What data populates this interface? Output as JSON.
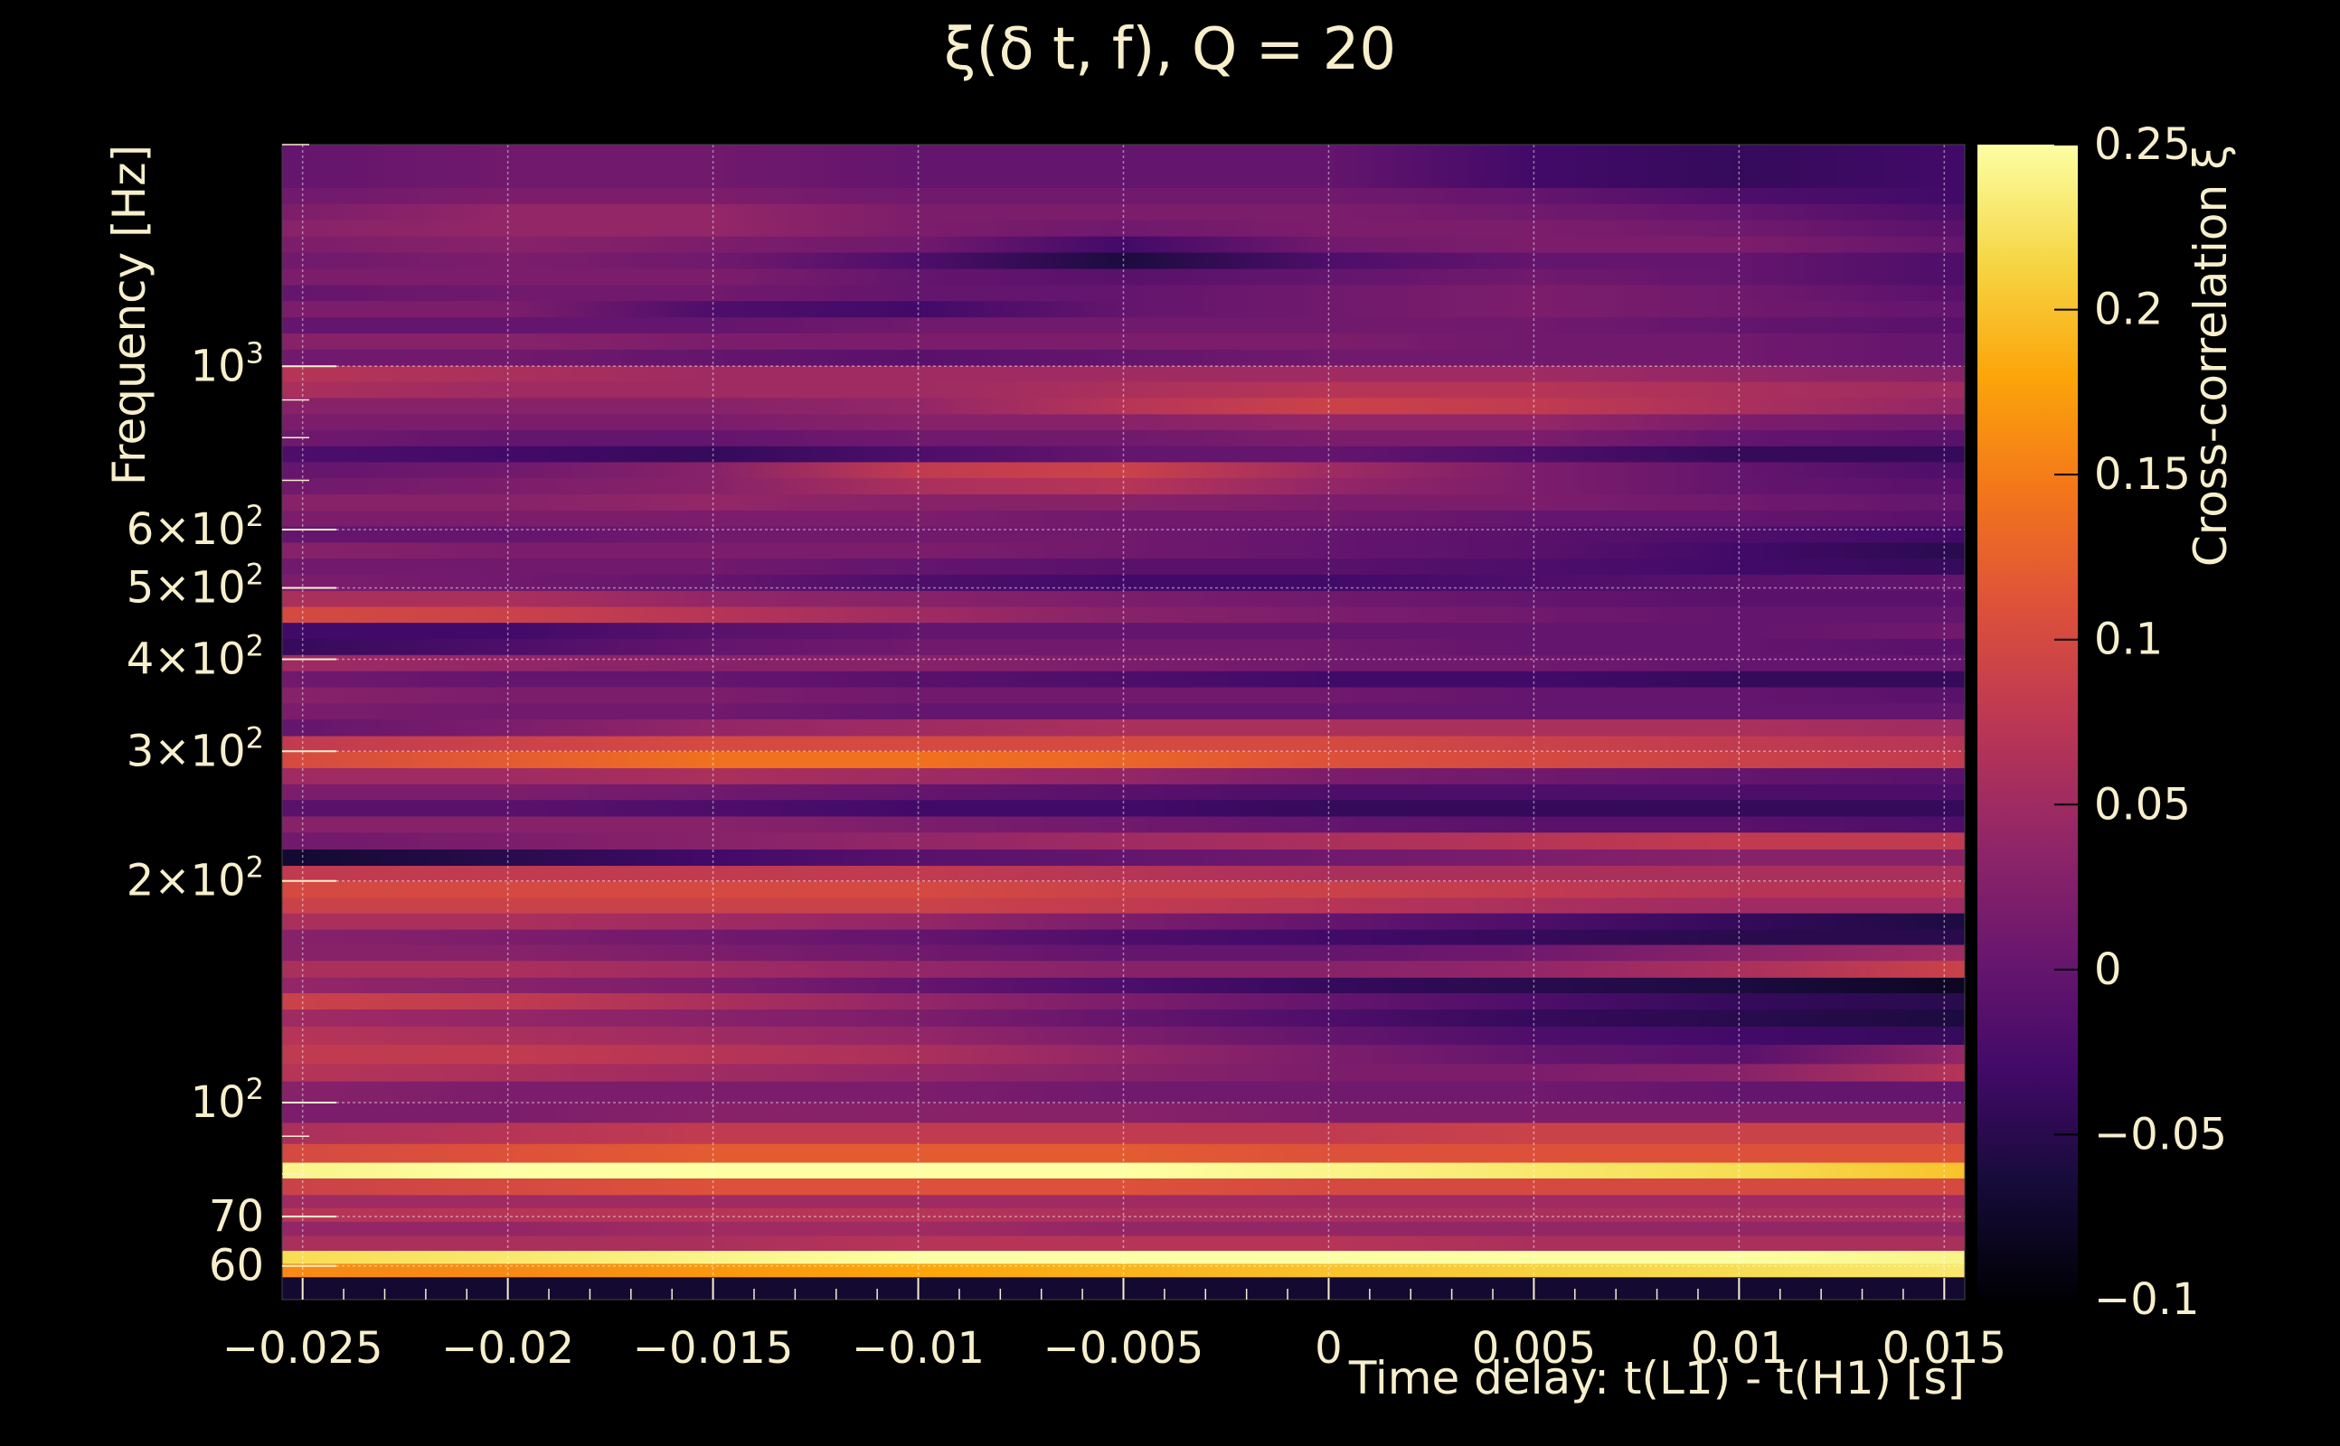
{
  "chart_data": {
    "type": "heatmap",
    "title": "ξ(δ t, f), Q = 20",
    "xlabel": "Time delay: t(L1) - t(H1) [s]",
    "ylabel": "Frequency [Hz]",
    "colorbar_label": "Cross-correlation ξ",
    "xlim": [
      -0.0255,
      0.0155
    ],
    "ylim": [
      54,
      2000
    ],
    "yscale": "log",
    "clim": [
      -0.1,
      0.25
    ],
    "colormap": "inferno",
    "grid": true,
    "x_ticks": [
      {
        "value": -0.025,
        "label": "−0.025"
      },
      {
        "value": -0.02,
        "label": "−0.02"
      },
      {
        "value": -0.015,
        "label": "−0.015"
      },
      {
        "value": -0.01,
        "label": "−0.01"
      },
      {
        "value": -0.005,
        "label": "−0.005"
      },
      {
        "value": 0,
        "label": "0"
      },
      {
        "value": 0.005,
        "label": "0.005"
      },
      {
        "value": 0.01,
        "label": "0.01"
      },
      {
        "value": 0.015,
        "label": "0.015"
      }
    ],
    "y_ticks": [
      {
        "value": 60,
        "label": "60"
      },
      {
        "value": 70,
        "label": "70"
      },
      {
        "value": 100,
        "base": "10",
        "exp": "2"
      },
      {
        "value": 200,
        "base": "2×10",
        "exp": "2"
      },
      {
        "value": 300,
        "base": "3×10",
        "exp": "2"
      },
      {
        "value": 400,
        "base": "4×10",
        "exp": "2"
      },
      {
        "value": 500,
        "base": "5×10",
        "exp": "2"
      },
      {
        "value": 600,
        "base": "6×10",
        "exp": "2"
      },
      {
        "value": 1000,
        "base": "10",
        "exp": "3"
      }
    ],
    "colorbar_ticks": [
      {
        "value": 0.25,
        "label": "0.25"
      },
      {
        "value": 0.2,
        "label": "0.2"
      },
      {
        "value": 0.15,
        "label": "0.15"
      },
      {
        "value": 0.1,
        "label": "0.1"
      },
      {
        "value": 0.05,
        "label": "0.05"
      },
      {
        "value": 0,
        "label": "0"
      },
      {
        "value": -0.05,
        "label": "−0.05"
      },
      {
        "value": -0.1,
        "label": "−0.1"
      }
    ],
    "x_samples": [
      -0.0255,
      -0.02,
      -0.015,
      -0.01,
      -0.005,
      0,
      0.005,
      0.01,
      0.0155
    ],
    "rows": [
      {
        "f": [
          54,
          58
        ],
        "v": [
          -0.07,
          -0.07,
          -0.07,
          -0.07,
          -0.07,
          -0.07,
          -0.07,
          -0.07,
          -0.07
        ]
      },
      {
        "f": [
          58,
          60.5
        ],
        "v": [
          0.16,
          0.16,
          0.17,
          0.18,
          0.19,
          0.2,
          0.21,
          0.22,
          0.23
        ]
      },
      {
        "f": [
          60.5,
          63
        ],
        "v": [
          0.22,
          0.23,
          0.24,
          0.25,
          0.25,
          0.25,
          0.25,
          0.25,
          0.24
        ]
      },
      {
        "f": [
          63,
          66
        ],
        "v": [
          0.06,
          0.06,
          0.06,
          0.07,
          0.07,
          0.07,
          0.06,
          0.06,
          0.06
        ]
      },
      {
        "f": [
          66,
          69
        ],
        "v": [
          0.04,
          0.04,
          0.05,
          0.05,
          0.04,
          0.04,
          0.04,
          0.04,
          0.04
        ]
      },
      {
        "f": [
          69,
          72
        ],
        "v": [
          0.07,
          0.07,
          0.07,
          0.07,
          0.06,
          0.06,
          0.06,
          0.06,
          0.06
        ]
      },
      {
        "f": [
          72,
          75
        ],
        "v": [
          0.05,
          0.05,
          0.05,
          0.05,
          0.05,
          0.05,
          0.05,
          0.05,
          0.05
        ]
      },
      {
        "f": [
          75,
          79
        ],
        "v": [
          0.09,
          0.1,
          0.11,
          0.11,
          0.11,
          0.1,
          0.1,
          0.1,
          0.1
        ]
      },
      {
        "f": [
          79,
          83
        ],
        "v": [
          0.24,
          0.25,
          0.25,
          0.25,
          0.25,
          0.24,
          0.23,
          0.22,
          0.2
        ]
      },
      {
        "f": [
          83,
          88
        ],
        "v": [
          0.1,
          0.11,
          0.12,
          0.12,
          0.12,
          0.11,
          0.11,
          0.11,
          0.11
        ]
      },
      {
        "f": [
          88,
          94
        ],
        "v": [
          0.06,
          0.07,
          0.08,
          0.08,
          0.08,
          0.08,
          0.09,
          0.09,
          0.09
        ]
      },
      {
        "f": [
          94,
          100
        ],
        "v": [
          0.02,
          0.02,
          0.03,
          0.03,
          0.03,
          0.02,
          0.02,
          0.02,
          0.02
        ]
      },
      {
        "f": [
          100,
          107
        ],
        "v": [
          0.03,
          0.02,
          0.02,
          0.02,
          0.01,
          0.01,
          0.01,
          0.0,
          0.0
        ]
      },
      {
        "f": [
          107,
          113
        ],
        "v": [
          0.07,
          0.06,
          0.05,
          0.04,
          0.03,
          0.02,
          0.02,
          0.03,
          0.07
        ]
      },
      {
        "f": [
          113,
          120
        ],
        "v": [
          0.08,
          0.08,
          0.07,
          0.06,
          0.04,
          0.02,
          0.0,
          -0.01,
          0.04
        ]
      },
      {
        "f": [
          120,
          127
        ],
        "v": [
          0.07,
          0.06,
          0.05,
          0.04,
          0.02,
          0.0,
          -0.02,
          -0.03,
          -0.04
        ]
      },
      {
        "f": [
          127,
          134
        ],
        "v": [
          0.05,
          0.04,
          0.03,
          0.02,
          0.0,
          -0.02,
          -0.04,
          -0.05,
          -0.06
        ]
      },
      {
        "f": [
          134,
          141
        ],
        "v": [
          0.09,
          0.08,
          0.06,
          0.04,
          0.02,
          0.0,
          -0.02,
          -0.04,
          -0.05
        ]
      },
      {
        "f": [
          141,
          148
        ],
        "v": [
          0.04,
          0.03,
          0.02,
          0.0,
          -0.02,
          -0.04,
          -0.05,
          -0.06,
          -0.08
        ]
      },
      {
        "f": [
          148,
          156
        ],
        "v": [
          0.06,
          0.06,
          0.05,
          0.04,
          0.03,
          0.03,
          0.04,
          0.06,
          0.09
        ]
      },
      {
        "f": [
          156,
          164
        ],
        "v": [
          0.03,
          0.03,
          0.02,
          0.01,
          0.0,
          0.0,
          0.01,
          0.03,
          0.05
        ]
      },
      {
        "f": [
          164,
          172
        ],
        "v": [
          0.03,
          0.02,
          0.01,
          0.0,
          -0.02,
          -0.03,
          -0.04,
          -0.05,
          -0.05
        ]
      },
      {
        "f": [
          172,
          181
        ],
        "v": [
          0.06,
          0.06,
          0.05,
          0.04,
          0.02,
          0.0,
          -0.02,
          -0.04,
          -0.06
        ]
      },
      {
        "f": [
          181,
          190
        ],
        "v": [
          0.09,
          0.09,
          0.09,
          0.09,
          0.08,
          0.07,
          0.06,
          0.05,
          0.05
        ]
      },
      {
        "f": [
          190,
          200
        ],
        "v": [
          0.1,
          0.1,
          0.1,
          0.1,
          0.09,
          0.09,
          0.08,
          0.07,
          0.07
        ]
      },
      {
        "f": [
          200,
          210
        ],
        "v": [
          0.08,
          0.08,
          0.08,
          0.08,
          0.07,
          0.06,
          0.06,
          0.06,
          0.06
        ]
      },
      {
        "f": [
          210,
          221
        ],
        "v": [
          -0.07,
          -0.05,
          -0.03,
          -0.01,
          0.0,
          0.01,
          0.02,
          0.03,
          0.03
        ]
      },
      {
        "f": [
          221,
          233
        ],
        "v": [
          0.01,
          0.02,
          0.03,
          0.04,
          0.05,
          0.06,
          0.07,
          0.08,
          0.08
        ]
      },
      {
        "f": [
          233,
          245
        ],
        "v": [
          0.03,
          0.03,
          0.03,
          0.02,
          0.01,
          0.0,
          -0.01,
          -0.01,
          -0.02
        ]
      },
      {
        "f": [
          245,
          258
        ],
        "v": [
          -0.01,
          -0.01,
          -0.02,
          -0.03,
          -0.03,
          -0.04,
          -0.04,
          -0.04,
          -0.04
        ]
      },
      {
        "f": [
          258,
          271
        ],
        "v": [
          0.02,
          0.02,
          0.01,
          0.0,
          -0.01,
          -0.02,
          -0.02,
          -0.02,
          -0.02
        ]
      },
      {
        "f": [
          271,
          285
        ],
        "v": [
          0.05,
          0.05,
          0.06,
          0.05,
          0.04,
          0.02,
          0.01,
          0.0,
          -0.01
        ]
      },
      {
        "f": [
          285,
          300
        ],
        "v": [
          0.1,
          0.12,
          0.14,
          0.14,
          0.13,
          0.11,
          0.1,
          0.09,
          0.08
        ]
      },
      {
        "f": [
          300,
          315
        ],
        "v": [
          0.08,
          0.09,
          0.1,
          0.1,
          0.1,
          0.1,
          0.09,
          0.08,
          0.07
        ]
      },
      {
        "f": [
          315,
          332
        ],
        "v": [
          0.0,
          0.02,
          0.04,
          0.05,
          0.06,
          0.06,
          0.06,
          0.06,
          0.05
        ]
      },
      {
        "f": [
          332,
          349
        ],
        "v": [
          0.02,
          0.01,
          0.01,
          0.0,
          0.0,
          0.0,
          0.0,
          0.0,
          0.0
        ]
      },
      {
        "f": [
          349,
          367
        ],
        "v": [
          0.03,
          0.02,
          0.02,
          0.01,
          0.01,
          0.01,
          0.0,
          0.0,
          -0.01
        ]
      },
      {
        "f": [
          367,
          386
        ],
        "v": [
          0.01,
          0.0,
          0.0,
          -0.01,
          -0.02,
          -0.03,
          -0.03,
          -0.04,
          -0.04
        ]
      },
      {
        "f": [
          386,
          406
        ],
        "v": [
          0.05,
          0.04,
          0.03,
          0.03,
          0.02,
          0.01,
          0.01,
          0.0,
          0.0
        ]
      },
      {
        "f": [
          406,
          427
        ],
        "v": [
          -0.04,
          -0.02,
          0.0,
          0.01,
          0.01,
          0.01,
          0.0,
          0.0,
          -0.01
        ]
      },
      {
        "f": [
          427,
          449
        ],
        "v": [
          -0.03,
          -0.03,
          -0.01,
          0.0,
          0.0,
          0.0,
          0.0,
          0.0,
          0.01
        ]
      },
      {
        "f": [
          449,
          472
        ],
        "v": [
          0.1,
          0.09,
          0.07,
          0.05,
          0.03,
          0.02,
          0.01,
          0.0,
          0.0
        ]
      },
      {
        "f": [
          472,
          496
        ],
        "v": [
          0.06,
          0.06,
          0.04,
          0.03,
          0.02,
          0.01,
          0.0,
          -0.01,
          -0.01
        ]
      },
      {
        "f": [
          496,
          522
        ],
        "v": [
          0.02,
          0.01,
          0.0,
          -0.02,
          -0.03,
          -0.03,
          -0.02,
          -0.01,
          0.0
        ]
      },
      {
        "f": [
          522,
          549
        ],
        "v": [
          0.01,
          0.01,
          0.01,
          0.0,
          -0.01,
          -0.01,
          -0.02,
          -0.03,
          -0.04
        ]
      },
      {
        "f": [
          549,
          577
        ],
        "v": [
          0.03,
          0.02,
          0.02,
          0.02,
          0.01,
          0.0,
          -0.01,
          -0.03,
          -0.05
        ]
      },
      {
        "f": [
          577,
          607
        ],
        "v": [
          0.0,
          0.0,
          0.01,
          0.01,
          0.01,
          0.0,
          -0.01,
          -0.02,
          -0.03
        ]
      },
      {
        "f": [
          607,
          638
        ],
        "v": [
          0.02,
          0.02,
          0.02,
          0.02,
          0.01,
          0.01,
          0.0,
          0.0,
          -0.01
        ]
      },
      {
        "f": [
          638,
          671
        ],
        "v": [
          0.03,
          0.03,
          0.04,
          0.03,
          0.03,
          0.02,
          0.02,
          0.01,
          0.0
        ]
      },
      {
        "f": [
          671,
          706
        ],
        "v": [
          0.01,
          0.02,
          0.03,
          0.06,
          0.07,
          0.04,
          0.02,
          0.0,
          -0.01
        ]
      },
      {
        "f": [
          706,
          742
        ],
        "v": [
          0.0,
          0.01,
          0.03,
          0.08,
          0.09,
          0.05,
          0.02,
          0.0,
          -0.02
        ]
      },
      {
        "f": [
          742,
          780
        ],
        "v": [
          -0.02,
          -0.03,
          -0.04,
          -0.02,
          0.0,
          0.0,
          -0.02,
          -0.04,
          -0.04
        ]
      },
      {
        "f": [
          780,
          820
        ],
        "v": [
          0.01,
          0.0,
          0.0,
          0.01,
          0.01,
          0.02,
          0.02,
          0.0,
          -0.01
        ]
      },
      {
        "f": [
          820,
          862
        ],
        "v": [
          0.02,
          0.02,
          0.02,
          0.03,
          0.03,
          0.04,
          0.04,
          0.02,
          0.01
        ]
      },
      {
        "f": [
          862,
          907
        ],
        "v": [
          0.03,
          0.03,
          0.03,
          0.04,
          0.07,
          0.09,
          0.08,
          0.06,
          0.04
        ]
      },
      {
        "f": [
          907,
          954
        ],
        "v": [
          0.06,
          0.05,
          0.05,
          0.05,
          0.06,
          0.07,
          0.07,
          0.06,
          0.05
        ]
      },
      {
        "f": [
          954,
          1003
        ],
        "v": [
          0.07,
          0.06,
          0.05,
          0.05,
          0.05,
          0.05,
          0.05,
          0.04,
          0.03
        ]
      },
      {
        "f": [
          1003,
          1055
        ],
        "v": [
          0.01,
          0.01,
          0.0,
          -0.01,
          0.0,
          0.01,
          0.01,
          0.01,
          0.0
        ]
      },
      {
        "f": [
          1055,
          1110
        ],
        "v": [
          0.03,
          0.03,
          0.02,
          0.02,
          0.02,
          0.02,
          0.01,
          0.01,
          0.0
        ]
      },
      {
        "f": [
          1110,
          1167
        ],
        "v": [
          0.0,
          0.0,
          0.0,
          0.01,
          0.01,
          0.01,
          0.01,
          0.0,
          -0.01
        ]
      },
      {
        "f": [
          1167,
          1228
        ],
        "v": [
          0.02,
          0.02,
          -0.02,
          -0.03,
          0.0,
          0.01,
          0.02,
          0.01,
          0.0
        ]
      },
      {
        "f": [
          1228,
          1291
        ],
        "v": [
          0.0,
          0.01,
          0.01,
          0.0,
          0.0,
          0.01,
          0.02,
          0.01,
          -0.01
        ]
      },
      {
        "f": [
          1291,
          1358
        ],
        "v": [
          0.02,
          0.02,
          0.02,
          0.0,
          -0.01,
          0.0,
          0.01,
          0.0,
          -0.02
        ]
      },
      {
        "f": [
          1358,
          1429
        ],
        "v": [
          0.01,
          0.02,
          0.01,
          -0.02,
          -0.06,
          -0.02,
          0.0,
          0.0,
          -0.02
        ]
      },
      {
        "f": [
          1429,
          1503
        ],
        "v": [
          0.02,
          0.03,
          0.02,
          0.01,
          -0.03,
          0.01,
          0.02,
          0.02,
          0.0
        ]
      },
      {
        "f": [
          1503,
          1581
        ],
        "v": [
          0.03,
          0.04,
          0.04,
          0.02,
          0.01,
          0.02,
          0.02,
          0.01,
          -0.01
        ]
      },
      {
        "f": [
          1581,
          1663
        ],
        "v": [
          0.02,
          0.04,
          0.04,
          0.02,
          0.02,
          0.02,
          0.01,
          0.0,
          -0.02
        ]
      },
      {
        "f": [
          1663,
          1749
        ],
        "v": [
          0.01,
          0.02,
          0.02,
          0.01,
          0.01,
          0.01,
          0.0,
          -0.02,
          -0.03
        ]
      },
      {
        "f": [
          1749,
          2000
        ],
        "v": [
          0.0,
          0.01,
          0.01,
          0.0,
          0.0,
          0.0,
          -0.03,
          -0.04,
          -0.03
        ]
      }
    ]
  }
}
